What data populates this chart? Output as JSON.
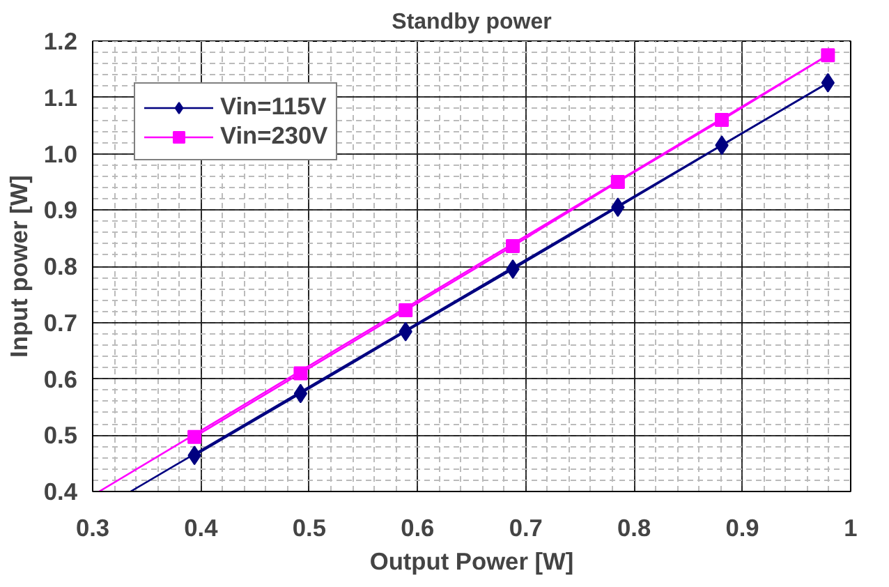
{
  "chart_data": {
    "type": "line",
    "title": "Standby power",
    "xlabel": "Output Power [W]",
    "ylabel": "Input power [W]",
    "xlim": [
      0.3,
      1
    ],
    "ylim": [
      0.4,
      1.2
    ],
    "xticks": [
      0.3,
      0.4,
      0.5,
      0.6,
      0.7,
      0.8,
      0.9,
      {
        "value": 1,
        "label": "1"
      }
    ],
    "yticks": [
      0.4,
      0.5,
      0.6,
      0.7,
      0.8,
      0.9,
      {
        "value": 1.0,
        "label": "1.0"
      },
      1.1,
      1.2
    ],
    "grid": true,
    "legend": "top left",
    "line_style": "solid",
    "series": [
      {
        "name": "Vin=115V",
        "color": "#000080",
        "marker": "diamond",
        "x": [
          0.394,
          0.492,
          0.589,
          0.688,
          0.785,
          0.881,
          0.979
        ],
        "values": [
          0.464,
          0.574,
          0.684,
          0.795,
          0.905,
          1.015,
          1.126
        ]
      },
      {
        "name": "Vin=230V",
        "color": "#ff00ff",
        "marker": "square",
        "x": [
          0.394,
          0.492,
          0.589,
          0.688,
          0.785,
          0.881,
          0.979
        ],
        "values": [
          0.497,
          0.61,
          0.722,
          0.836,
          0.95,
          1.06,
          1.175
        ]
      },
      {
        "color": "#000080",
        "marker": "none",
        "x": [
          0.335,
          0.979
        ],
        "values": [
          0.4,
          1.126
        ]
      },
      {
        "color": "#ff00ff",
        "marker": "none",
        "x": [
          0.306,
          0.979
        ],
        "values": [
          0.4,
          1.175
        ]
      }
    ]
  }
}
